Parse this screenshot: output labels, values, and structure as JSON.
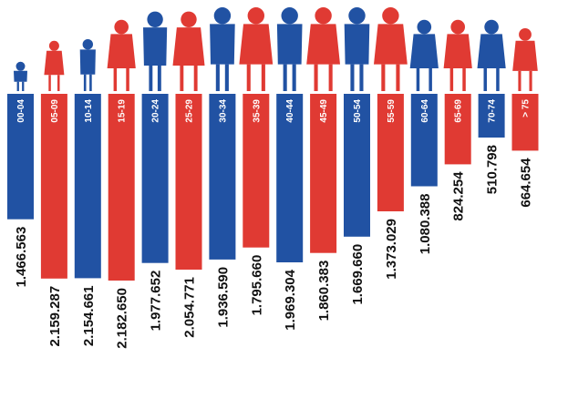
{
  "colors": {
    "blue": "#2152a3",
    "red": "#e03a33",
    "background": "#ffffff"
  },
  "chart_data": {
    "type": "bar",
    "title": "",
    "xlabel": "",
    "ylabel": "",
    "orientation": "vertical-hanging",
    "value_label_rotation": -90,
    "categories": [
      "00-04",
      "05-09",
      "10-14",
      "15-19",
      "20-24",
      "25-29",
      "30-34",
      "35-39",
      "40-44",
      "45-49",
      "50-54",
      "55-59",
      "60-64",
      "65-69",
      "70-74",
      "> 75"
    ],
    "values": [
      1466563,
      2159287,
      2154661,
      2182650,
      1977652,
      2054771,
      1936590,
      1795660,
      1969304,
      1860383,
      1669660,
      1373029,
      1080388,
      824254,
      510798,
      664654
    ],
    "value_labels": [
      "1.466.563",
      "2.159.287",
      "2.154.661",
      "2.182.650",
      "1.977.652",
      "2.054.771",
      "1.936.590",
      "1.795.660",
      "1.969.304",
      "1.860.383",
      "1.669.660",
      "1.373.029",
      "1.080.388",
      "824.254",
      "510.798",
      "664.654"
    ],
    "bar_colors": [
      "#2152a3",
      "#e03a33",
      "#2152a3",
      "#e03a33",
      "#2152a3",
      "#e03a33",
      "#2152a3",
      "#e03a33",
      "#2152a3",
      "#e03a33",
      "#2152a3",
      "#e03a33",
      "#2152a3",
      "#e03a33",
      "#2152a3",
      "#e03a33"
    ],
    "icons": [
      "baby-icon",
      "girl-child-icon",
      "child-icon",
      "teen-girl-icon",
      "young-woman-hat-icon",
      "young-woman-icon",
      "woman-drink-icon",
      "woman-dress-icon",
      "woman-icon",
      "woman-icon",
      "woman-icon",
      "woman-coat-icon",
      "elderly-woman-icon",
      "elderly-woman-icon",
      "elderly-woman-icon",
      "seated-elderly-woman-icon"
    ],
    "grid": false,
    "legend": "none"
  }
}
